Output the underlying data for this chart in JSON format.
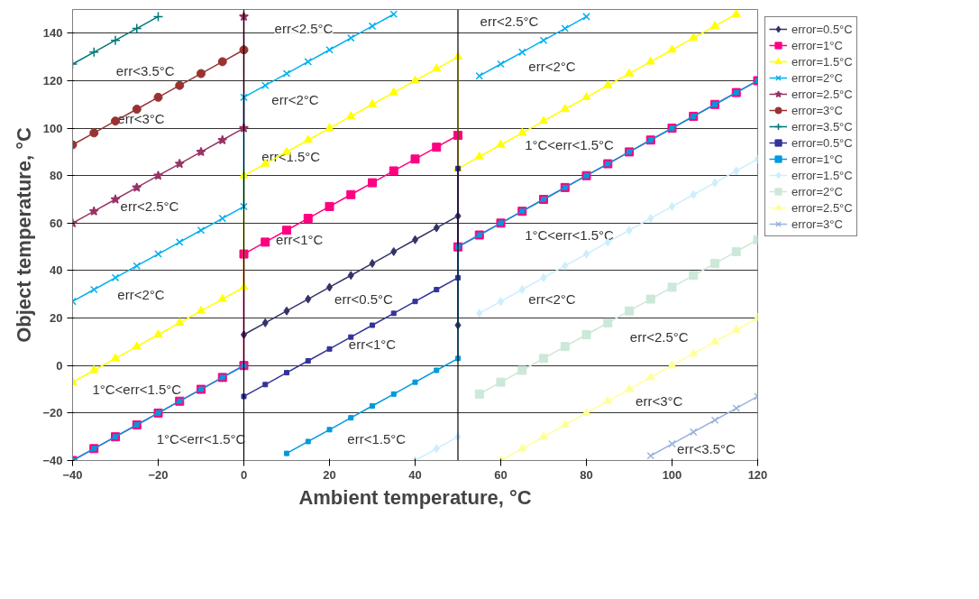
{
  "chart_data": {
    "type": "line",
    "xlabel": "Ambient temperature, °C",
    "ylabel": "Object temperature, °C",
    "xlim": [
      -40,
      120
    ],
    "ylim": [
      -40,
      150
    ],
    "xticks": [
      -40,
      -20,
      0,
      20,
      40,
      60,
      80,
      100,
      120
    ],
    "yticks": [
      -40,
      -20,
      0,
      20,
      40,
      60,
      80,
      100,
      120,
      140
    ],
    "grid": "y",
    "legend": "right",
    "line_style": "solid",
    "ref_lines": [
      {
        "axis": "x",
        "value": 0,
        "color": "#000000"
      },
      {
        "axis": "x",
        "value": 50,
        "color": "#000000"
      }
    ],
    "series": [
      {
        "name": "error=0.5°C",
        "color": "#333366",
        "marker": "diamond",
        "x": [
          0,
          5,
          10,
          15,
          20,
          25,
          30,
          35,
          40,
          45,
          50,
          50
        ],
        "values": [
          13,
          18,
          23,
          28,
          33,
          38,
          43,
          48,
          53,
          58,
          63,
          17
        ]
      },
      {
        "name": "error=1°C",
        "color": "#ff0080",
        "marker": "square",
        "x": [
          -40,
          -35,
          -30,
          -25,
          -20,
          -15,
          -10,
          -5,
          0,
          0,
          5,
          10,
          15,
          20,
          25,
          30,
          35,
          40,
          45,
          50,
          50,
          55,
          60,
          65,
          70,
          75,
          80,
          85,
          90,
          95,
          100,
          105,
          110,
          115,
          120
        ],
        "values": [
          -40,
          -35,
          -30,
          -25,
          -20,
          -15,
          -10,
          -5,
          0,
          47,
          52,
          57,
          62,
          67,
          72,
          77,
          82,
          87,
          92,
          97,
          50,
          55,
          60,
          65,
          70,
          75,
          80,
          85,
          90,
          95,
          100,
          105,
          110,
          115,
          120
        ]
      },
      {
        "name": "error=1.5°C",
        "color": "#ffff00",
        "marker": "triangle",
        "x": [
          -40,
          -35,
          -30,
          -25,
          -20,
          -15,
          -10,
          -5,
          0,
          0,
          5,
          10,
          15,
          20,
          25,
          30,
          35,
          40,
          45,
          50,
          50,
          55,
          60,
          65,
          70,
          75,
          80,
          85,
          90,
          95,
          100,
          105,
          110,
          115
        ],
        "values": [
          -7,
          -2,
          3,
          8,
          13,
          18,
          23,
          28,
          33,
          80,
          85,
          90,
          95,
          100,
          105,
          110,
          115,
          120,
          125,
          130,
          83,
          88,
          93,
          98,
          103,
          108,
          113,
          118,
          123,
          128,
          133,
          138,
          143,
          148
        ]
      },
      {
        "name": "error=2°C",
        "color": "#00b0f0",
        "marker": "x",
        "x": [
          -40,
          -35,
          -30,
          -25,
          -20,
          -15,
          -10,
          -5,
          0,
          0,
          5,
          10,
          15,
          20,
          25,
          30,
          35,
          45,
          55,
          60,
          65,
          70,
          75,
          80
        ],
        "values": [
          27,
          32,
          37,
          42,
          47,
          52,
          57,
          62,
          67,
          113,
          118,
          123,
          128,
          133,
          138,
          143,
          148,
          null,
          122,
          127,
          132,
          137,
          142,
          147
        ]
      },
      {
        "name": "error=2.5°C",
        "color": "#993366",
        "marker": "star",
        "x": [
          -40,
          -35,
          -30,
          -25,
          -20,
          -15,
          -10,
          -5,
          0,
          0
        ],
        "values": [
          60,
          65,
          70,
          75,
          80,
          85,
          90,
          95,
          100,
          147
        ]
      },
      {
        "name": "error=3°C",
        "color": "#993333",
        "marker": "circle",
        "x": [
          -40,
          -35,
          -30,
          -25,
          -20,
          -15,
          -10,
          -5,
          0
        ],
        "values": [
          93,
          98,
          103,
          108,
          113,
          118,
          123,
          128,
          133
        ]
      },
      {
        "name": "error=3.5°C",
        "color": "#007777",
        "marker": "cross",
        "x": [
          -40,
          -35,
          -30,
          -25,
          -20
        ],
        "values": [
          127,
          132,
          137,
          142,
          147
        ]
      },
      {
        "name": "error=0.5°C",
        "color": "#333399",
        "marker": "square",
        "x": [
          0,
          5,
          10,
          15,
          20,
          25,
          30,
          35,
          40,
          45,
          50,
          50
        ],
        "values": [
          -13,
          -8,
          -3,
          2,
          7,
          12,
          17,
          22,
          27,
          32,
          37,
          83
        ]
      },
      {
        "name": "error=1°C",
        "color": "#0099dd",
        "marker": "square",
        "x": [
          -40,
          -35,
          -30,
          -25,
          -20,
          -15,
          -10,
          -5,
          0,
          5,
          10,
          15,
          20,
          25,
          30,
          35,
          40,
          45,
          50,
          50,
          55,
          60,
          65,
          70,
          75,
          80,
          85,
          90,
          95,
          100,
          105,
          110,
          115,
          120
        ],
        "values": [
          -40,
          -35,
          -30,
          -25,
          -20,
          -15,
          -10,
          -5,
          0,
          null,
          -37,
          -32,
          -27,
          -22,
          -17,
          -12,
          -7,
          -2,
          3,
          50,
          55,
          60,
          65,
          70,
          75,
          80,
          85,
          90,
          95,
          100,
          105,
          110,
          115,
          120
        ]
      },
      {
        "name": "error=1.5°C",
        "color": "#cceeff",
        "marker": "diamond",
        "x": [
          40,
          45,
          50,
          52,
          55,
          60,
          65,
          70,
          75,
          80,
          85,
          90,
          95,
          100,
          105,
          110,
          115,
          120
        ],
        "values": [
          -40,
          -35,
          -30,
          null,
          22,
          27,
          32,
          37,
          42,
          47,
          52,
          57,
          62,
          67,
          72,
          77,
          82,
          87
        ]
      },
      {
        "name": "error=2°C",
        "color": "#cce8d8",
        "marker": "square",
        "x": [
          55,
          60,
          65,
          70,
          75,
          80,
          85,
          90,
          95,
          100,
          105,
          110,
          115,
          120
        ],
        "values": [
          -12,
          -7,
          -2,
          3,
          8,
          13,
          18,
          23,
          28,
          33,
          38,
          43,
          48,
          53
        ]
      },
      {
        "name": "error=2.5°C",
        "color": "#ffff99",
        "marker": "triangle",
        "x": [
          60,
          65,
          70,
          75,
          80,
          85,
          90,
          95,
          100,
          105,
          110,
          115,
          120
        ],
        "values": [
          -40,
          -35,
          -30,
          -25,
          -20,
          -15,
          -10,
          -5,
          0,
          5,
          10,
          15,
          20
        ]
      },
      {
        "name": "error=3°C",
        "color": "#99b3dd",
        "marker": "x",
        "x": [
          95,
          100,
          105,
          110,
          115,
          120
        ],
        "values": [
          -38,
          -33,
          -28,
          -23,
          -18,
          -13
        ]
      }
    ],
    "annotations": [
      "err<3.5°C",
      "err<3°C",
      "err<2.5°C",
      "err<2°C",
      "1°C<err<1.5°C",
      "1°C<err<1.5°C",
      "err<2.5°C",
      "err<2°C",
      "err<1.5°C",
      "err<1°C",
      "err<0.5°C",
      "err<1°C",
      "err<1.5°C",
      "err<2.5°C",
      "err<2°C",
      "1°C<err<1.5°C",
      "1°C<err<1.5°C",
      "err<2°C",
      "err<2.5°C",
      "err<3°C",
      "err<3.5°C"
    ]
  }
}
